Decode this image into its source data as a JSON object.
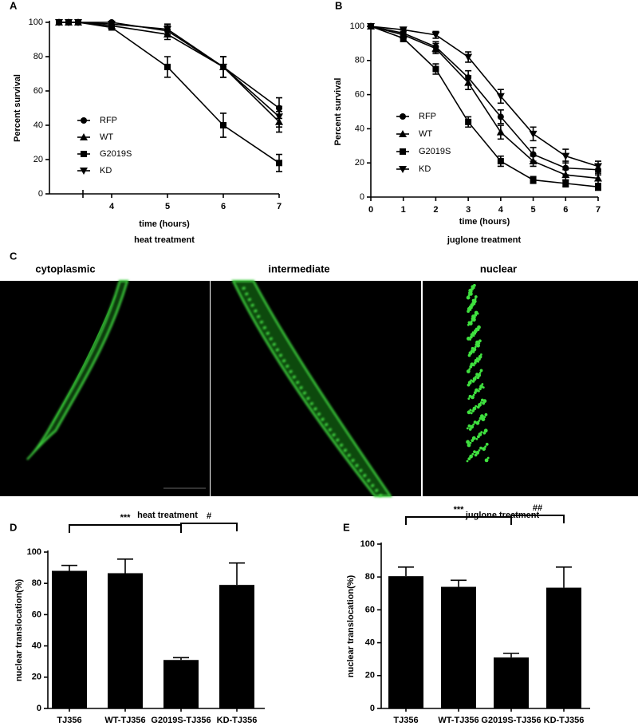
{
  "chart_data": [
    {
      "type": "line",
      "panel_label": "A",
      "title": "heat treatment",
      "x_label": "time (hours)",
      "y_label": "Percent survival",
      "x": [
        1,
        2,
        3,
        4,
        5,
        6,
        7
      ],
      "xlim": [
        0,
        7
      ],
      "xticks": [
        4,
        5,
        6,
        7
      ],
      "x_axis_break": true,
      "ylim": [
        0,
        100
      ],
      "yticks": [
        0,
        20,
        40,
        60,
        80,
        100
      ],
      "grid": false,
      "series": [
        {
          "name": "RFP",
          "color": "#000000",
          "marker": "circle",
          "values": [
            100,
            100,
            100,
            100,
            95,
            74,
            50
          ],
          "errors": [
            null,
            null,
            null,
            null,
            3,
            6,
            6
          ]
        },
        {
          "name": "WT",
          "color": "#000000",
          "marker": "triangle",
          "values": [
            100,
            100,
            100,
            98,
            93,
            74,
            42
          ],
          "errors": [
            null,
            null,
            null,
            null,
            3,
            6,
            6
          ]
        },
        {
          "name": "G2019S",
          "color": "#000000",
          "marker": "square",
          "values": [
            100,
            100,
            100,
            97,
            74,
            40,
            18
          ],
          "errors": [
            null,
            null,
            null,
            null,
            6,
            7,
            5
          ]
        },
        {
          "name": "KD",
          "color": "#000000",
          "marker": "triangle-down",
          "values": [
            100,
            100,
            100,
            99,
            96,
            74,
            45
          ],
          "errors": [
            null,
            null,
            null,
            null,
            3,
            6,
            6
          ]
        }
      ]
    },
    {
      "type": "line",
      "panel_label": "B",
      "title": "juglone treatment",
      "x_label": "time (hours)",
      "y_label": "Percent survival",
      "x": [
        0,
        1,
        2,
        3,
        4,
        5,
        6,
        7
      ],
      "xlim": [
        0,
        7
      ],
      "xticks": [
        0,
        1,
        2,
        3,
        4,
        5,
        6,
        7
      ],
      "ylim": [
        0,
        100
      ],
      "yticks": [
        0,
        20,
        40,
        60,
        80,
        100
      ],
      "grid": false,
      "series": [
        {
          "name": "RFP",
          "color": "#000000",
          "marker": "circle",
          "values": [
            100,
            96,
            88,
            70,
            47,
            25,
            17,
            16
          ],
          "errors": [
            null,
            2,
            3,
            4,
            4,
            4,
            4,
            3
          ]
        },
        {
          "name": "WT",
          "color": "#000000",
          "marker": "triangle",
          "values": [
            100,
            95,
            87,
            67,
            38,
            21,
            13,
            11
          ],
          "errors": [
            null,
            2,
            3,
            4,
            4,
            3,
            3,
            3
          ]
        },
        {
          "name": "G2019S",
          "color": "#000000",
          "marker": "square",
          "values": [
            100,
            93,
            75,
            44,
            21,
            10,
            8,
            6
          ],
          "errors": [
            null,
            2,
            3,
            3,
            3,
            2,
            2,
            2
          ]
        },
        {
          "name": "KD",
          "color": "#000000",
          "marker": "triangle-down",
          "values": [
            100,
            98,
            95,
            82,
            59,
            37,
            24,
            18
          ],
          "errors": [
            null,
            1,
            2,
            3,
            4,
            4,
            4,
            3
          ]
        }
      ]
    },
    {
      "type": "bar",
      "panel_label": "D",
      "title": "heat treatment",
      "y_label": "nuclear translocation(%)",
      "categories": [
        "TJ356",
        "WT-TJ356",
        "G2019S-TJ356",
        "KD-TJ356"
      ],
      "values": [
        88,
        86.5,
        31,
        79
      ],
      "errors": [
        3.5,
        9,
        1.5,
        14
      ],
      "color": "#000000",
      "ylim": [
        0,
        100
      ],
      "yticks": [
        0,
        20,
        40,
        60,
        80,
        100
      ],
      "grid": false,
      "annotations": [
        {
          "text": "***",
          "between": [
            0,
            2
          ]
        },
        {
          "text": "#",
          "between": [
            2,
            3
          ]
        }
      ]
    },
    {
      "type": "bar",
      "panel_label": "E",
      "title": "juglone treatment",
      "y_label": "nuclear translocation(%)",
      "categories": [
        "TJ356",
        "WT-TJ356",
        "G2019S-TJ356",
        "KD-TJ356"
      ],
      "values": [
        80.5,
        74,
        31,
        73.5
      ],
      "errors": [
        5.5,
        4,
        2.5,
        12.5
      ],
      "color": "#000000",
      "ylim": [
        0,
        100
      ],
      "yticks": [
        0,
        20,
        40,
        60,
        80,
        100
      ],
      "grid": false,
      "annotations": [
        {
          "text": "***",
          "between": [
            0,
            2
          ]
        },
        {
          "text": "##",
          "between": [
            2,
            3
          ]
        }
      ]
    }
  ],
  "micrographs": {
    "panel_label": "C",
    "images": [
      {
        "label": "cytoplasmic"
      },
      {
        "label": "intermediate"
      },
      {
        "label": "nuclear"
      }
    ]
  }
}
